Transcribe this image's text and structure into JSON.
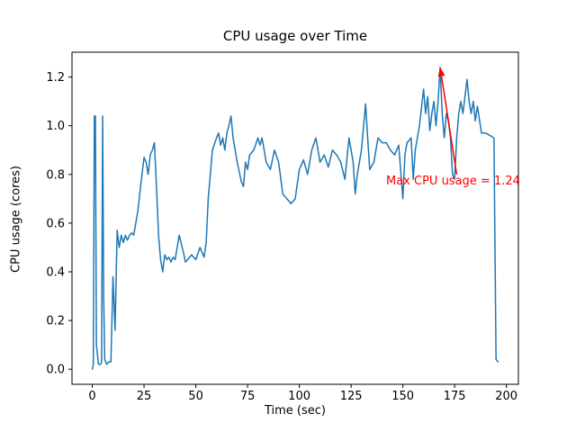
{
  "figure": {
    "background": "#ffffff"
  },
  "chart_data": {
    "type": "line",
    "title": "CPU usage over Time",
    "xlabel": "Time (sec)",
    "ylabel": "CPU usage (cores)",
    "xlim": [
      -9.8,
      205.8
    ],
    "ylim": [
      -0.062,
      1.302
    ],
    "x_ticks": [
      0,
      25,
      50,
      75,
      100,
      125,
      150,
      175,
      200
    ],
    "y_ticks": [
      0.0,
      0.2,
      0.4,
      0.6,
      0.8,
      1.0,
      1.2
    ],
    "grid": false,
    "legend": null,
    "line_color": "#1f77b4",
    "series": [
      {
        "name": "cpu_usage",
        "points": [
          [
            0,
            0.0
          ],
          [
            0.5,
            0.02
          ],
          [
            1,
            1.04
          ],
          [
            1.5,
            1.04
          ],
          [
            2,
            0.1
          ],
          [
            3,
            0.02
          ],
          [
            4,
            0.02
          ],
          [
            4.5,
            0.03
          ],
          [
            5,
            1.04
          ],
          [
            5.5,
            0.3
          ],
          [
            6,
            0.04
          ],
          [
            7,
            0.02
          ],
          [
            8,
            0.03
          ],
          [
            9,
            0.03
          ],
          [
            10,
            0.38
          ],
          [
            11,
            0.16
          ],
          [
            12,
            0.57
          ],
          [
            13,
            0.5
          ],
          [
            14,
            0.55
          ],
          [
            15,
            0.52
          ],
          [
            16,
            0.55
          ],
          [
            17,
            0.53
          ],
          [
            18,
            0.55
          ],
          [
            19,
            0.56
          ],
          [
            20,
            0.55
          ],
          [
            22,
            0.65
          ],
          [
            24,
            0.8
          ],
          [
            25,
            0.87
          ],
          [
            26,
            0.85
          ],
          [
            27,
            0.8
          ],
          [
            28,
            0.88
          ],
          [
            29,
            0.9
          ],
          [
            30,
            0.93
          ],
          [
            31,
            0.75
          ],
          [
            32,
            0.55
          ],
          [
            33,
            0.45
          ],
          [
            34,
            0.4
          ],
          [
            35,
            0.47
          ],
          [
            36,
            0.45
          ],
          [
            37,
            0.46
          ],
          [
            38,
            0.44
          ],
          [
            39,
            0.46
          ],
          [
            40,
            0.45
          ],
          [
            42,
            0.55
          ],
          [
            44,
            0.48
          ],
          [
            45,
            0.44
          ],
          [
            46,
            0.45
          ],
          [
            48,
            0.47
          ],
          [
            50,
            0.45
          ],
          [
            52,
            0.5
          ],
          [
            54,
            0.46
          ],
          [
            55,
            0.52
          ],
          [
            56,
            0.7
          ],
          [
            58,
            0.9
          ],
          [
            60,
            0.95
          ],
          [
            61,
            0.97
          ],
          [
            62,
            0.92
          ],
          [
            63,
            0.95
          ],
          [
            64,
            0.9
          ],
          [
            65,
            0.97
          ],
          [
            66,
            1.0
          ],
          [
            67,
            1.04
          ],
          [
            68,
            0.95
          ],
          [
            70,
            0.85
          ],
          [
            72,
            0.77
          ],
          [
            73,
            0.75
          ],
          [
            74,
            0.85
          ],
          [
            75,
            0.82
          ],
          [
            76,
            0.88
          ],
          [
            78,
            0.9
          ],
          [
            80,
            0.95
          ],
          [
            81,
            0.92
          ],
          [
            82,
            0.95
          ],
          [
            84,
            0.85
          ],
          [
            86,
            0.82
          ],
          [
            88,
            0.9
          ],
          [
            90,
            0.85
          ],
          [
            92,
            0.72
          ],
          [
            94,
            0.7
          ],
          [
            96,
            0.68
          ],
          [
            98,
            0.7
          ],
          [
            100,
            0.82
          ],
          [
            102,
            0.86
          ],
          [
            104,
            0.8
          ],
          [
            106,
            0.9
          ],
          [
            108,
            0.95
          ],
          [
            110,
            0.85
          ],
          [
            112,
            0.88
          ],
          [
            114,
            0.83
          ],
          [
            116,
            0.9
          ],
          [
            118,
            0.88
          ],
          [
            120,
            0.85
          ],
          [
            122,
            0.78
          ],
          [
            124,
            0.95
          ],
          [
            126,
            0.85
          ],
          [
            127,
            0.72
          ],
          [
            128,
            0.8
          ],
          [
            130,
            0.9
          ],
          [
            132,
            1.09
          ],
          [
            133,
            0.95
          ],
          [
            134,
            0.82
          ],
          [
            136,
            0.85
          ],
          [
            138,
            0.95
          ],
          [
            140,
            0.93
          ],
          [
            142,
            0.93
          ],
          [
            144,
            0.9
          ],
          [
            146,
            0.88
          ],
          [
            148,
            0.92
          ],
          [
            150,
            0.7
          ],
          [
            151,
            0.88
          ],
          [
            152,
            0.93
          ],
          [
            154,
            0.95
          ],
          [
            155,
            0.78
          ],
          [
            156,
            0.9
          ],
          [
            158,
            1.0
          ],
          [
            160,
            1.15
          ],
          [
            161,
            1.05
          ],
          [
            162,
            1.12
          ],
          [
            163,
            0.98
          ],
          [
            164,
            1.05
          ],
          [
            165,
            1.1
          ],
          [
            166,
            1.0
          ],
          [
            167,
            1.1
          ],
          [
            168,
            1.24
          ],
          [
            169,
            1.05
          ],
          [
            170,
            0.95
          ],
          [
            171,
            1.05
          ],
          [
            172,
            1.02
          ],
          [
            173,
            0.95
          ],
          [
            174,
            0.8
          ],
          [
            175,
            0.78
          ],
          [
            176,
            0.95
          ],
          [
            177,
            1.05
          ],
          [
            178,
            1.1
          ],
          [
            179,
            1.05
          ],
          [
            180,
            1.12
          ],
          [
            181,
            1.19
          ],
          [
            182,
            1.1
          ],
          [
            183,
            1.05
          ],
          [
            184,
            1.1
          ],
          [
            185,
            1.02
          ],
          [
            186,
            1.08
          ],
          [
            188,
            0.97
          ],
          [
            190,
            0.97
          ],
          [
            192,
            0.96
          ],
          [
            194,
            0.95
          ],
          [
            195,
            0.04
          ],
          [
            196,
            0.03
          ]
        ]
      }
    ],
    "annotation": {
      "text": "Max CPU usage = 1.24",
      "color": "#ff0000",
      "xy": [
        168,
        1.24
      ],
      "xytext": [
        142,
        0.76
      ],
      "arrow_start": [
        176,
        0.8
      ]
    }
  }
}
